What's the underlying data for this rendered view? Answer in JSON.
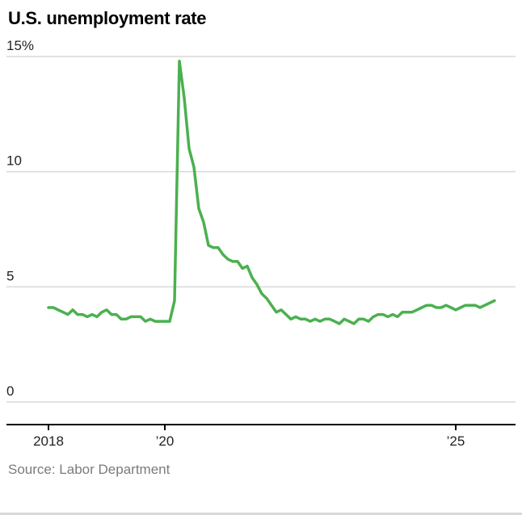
{
  "title": "U.S. unemployment rate",
  "source": "Source: Labor Department",
  "colors": {
    "line": "#4bb04f",
    "grid": "#d9d9d9",
    "axis": "#000000",
    "tick_label": "#222222",
    "source_text": "#7b7b7b"
  },
  "chart_data": {
    "type": "line",
    "title": "U.S. unemployment rate",
    "unit": "%",
    "frequency": "monthly",
    "start": "2018-01",
    "end": "2025-09",
    "ylim": [
      0,
      15
    ],
    "grid": "horizontal",
    "legend": "none",
    "y_ticks": [
      {
        "value": 15,
        "label": "15%"
      },
      {
        "value": 10,
        "label": "10"
      },
      {
        "value": 5,
        "label": "5"
      },
      {
        "value": 0,
        "label": "0"
      }
    ],
    "x_ticks": [
      {
        "year": 2018,
        "label": "2018"
      },
      {
        "year": 2020,
        "label": "’20"
      },
      {
        "year": 2025,
        "label": "’25"
      }
    ],
    "series": [
      {
        "name": "U.S. unemployment rate",
        "color": "#4bb04f",
        "values": [
          4.1,
          4.1,
          4.0,
          3.9,
          3.8,
          4.0,
          3.8,
          3.8,
          3.7,
          3.8,
          3.7,
          3.9,
          4.0,
          3.8,
          3.8,
          3.6,
          3.6,
          3.7,
          3.7,
          3.7,
          3.5,
          3.6,
          3.5,
          3.5,
          3.5,
          3.5,
          4.4,
          14.8,
          13.2,
          11.0,
          10.2,
          8.4,
          7.8,
          6.8,
          6.7,
          6.7,
          6.4,
          6.2,
          6.1,
          6.1,
          5.8,
          5.9,
          5.4,
          5.1,
          4.7,
          4.5,
          4.2,
          3.9,
          4.0,
          3.8,
          3.6,
          3.7,
          3.6,
          3.6,
          3.5,
          3.6,
          3.5,
          3.6,
          3.6,
          3.5,
          3.4,
          3.6,
          3.5,
          3.4,
          3.6,
          3.6,
          3.5,
          3.7,
          3.8,
          3.8,
          3.7,
          3.8,
          3.7,
          3.9,
          3.9,
          3.9,
          4.0,
          4.1,
          4.2,
          4.2,
          4.1,
          4.1,
          4.2,
          4.1,
          4.0,
          4.1,
          4.2,
          4.2,
          4.2,
          4.1,
          4.2,
          4.3,
          4.4
        ]
      }
    ]
  }
}
